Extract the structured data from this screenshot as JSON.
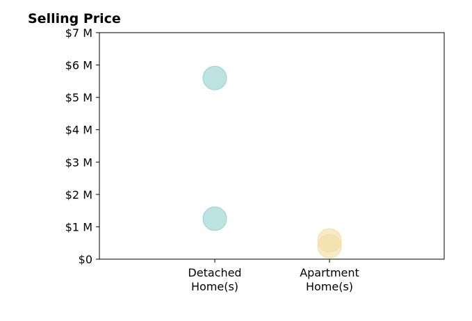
{
  "chart_data": {
    "type": "scatter",
    "title": "Selling Price",
    "xlabel": "",
    "ylabel": "",
    "categories": [
      [
        "Detached",
        "Home(s)"
      ],
      [
        "Apartment",
        "Home(s)"
      ]
    ],
    "ylim": [
      0,
      7000000
    ],
    "yticks": [
      {
        "value": 0,
        "label": "$0"
      },
      {
        "value": 1000000,
        "label": "$1 M"
      },
      {
        "value": 2000000,
        "label": "$2 M"
      },
      {
        "value": 3000000,
        "label": "$3 M"
      },
      {
        "value": 4000000,
        "label": "$4 M"
      },
      {
        "value": 5000000,
        "label": "$5 M"
      },
      {
        "value": 6000000,
        "label": "$6 M"
      },
      {
        "value": 7000000,
        "label": "$7 M"
      }
    ],
    "grid": false,
    "series": [
      {
        "category_index": 0,
        "color": "#8fd0c9",
        "values": [
          5600000,
          1250000
        ]
      },
      {
        "category_index": 1,
        "color": "#f3dca2",
        "values": [
          580000,
          400000
        ]
      }
    ]
  }
}
